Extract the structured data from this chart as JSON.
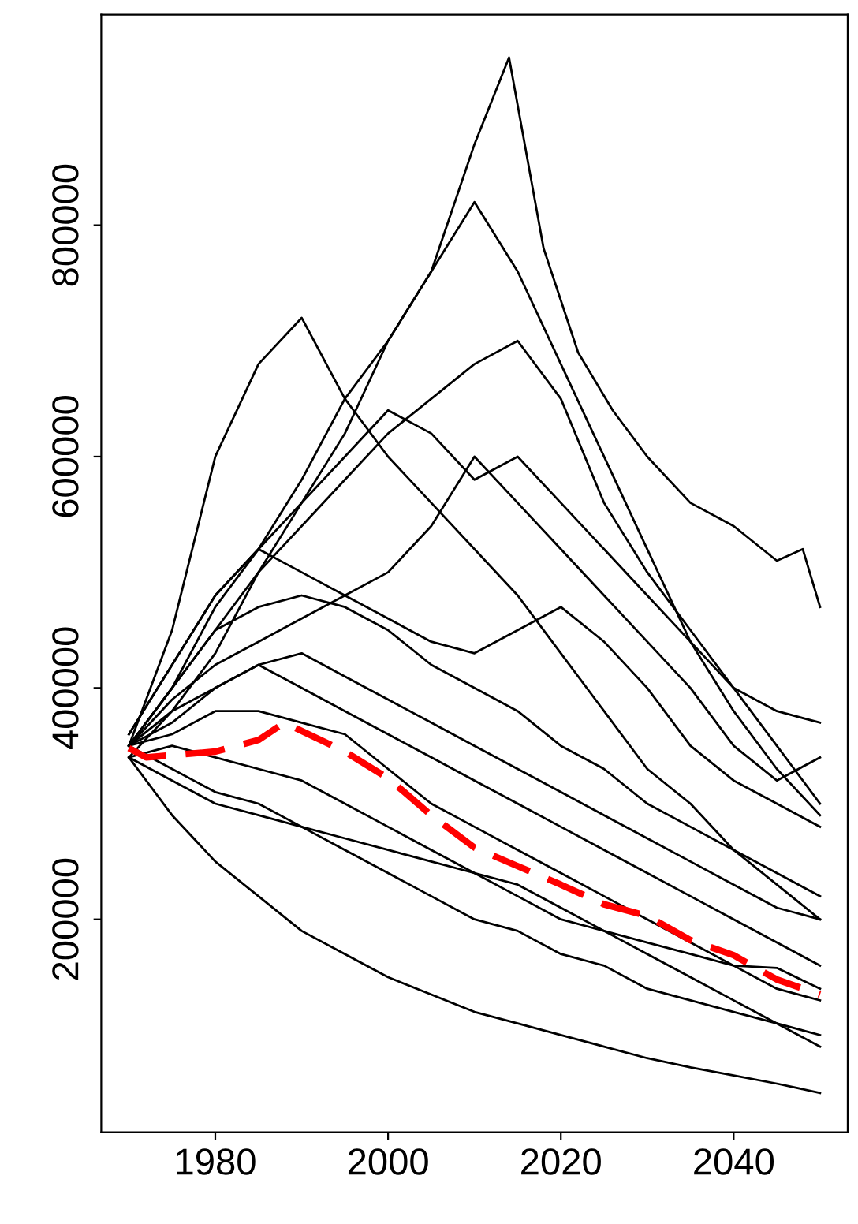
{
  "chart_data": {
    "type": "line",
    "x": [
      1970,
      1975,
      1980,
      1985,
      1990,
      1995,
      2000,
      2005,
      2010,
      2015,
      2020,
      2025,
      2030,
      2035,
      2040,
      2045,
      2050
    ],
    "xlim": [
      1966.8,
      2053.2
    ],
    "xticks": [
      1980,
      2000,
      2020,
      2040
    ],
    "ylim": [
      16000,
      982000
    ],
    "yticks": [
      200000,
      400000,
      600000,
      800000
    ],
    "grid": false,
    "legend": false,
    "marker": "none",
    "series": [
      {
        "color": "#000000",
        "x": [
          1970,
          1975,
          1980,
          1985,
          1990,
          1995,
          2000,
          2005,
          2010,
          2014,
          2018,
          2022,
          2026,
          2030,
          2035,
          2040,
          2045,
          2048,
          2050
        ],
        "values": [
          350000,
          400000,
          470000,
          520000,
          580000,
          650000,
          700000,
          760000,
          870000,
          945000,
          780000,
          690000,
          640000,
          600000,
          560000,
          540000,
          510000,
          520000,
          470000
        ]
      },
      {
        "color": "#000000",
        "values": [
          350000,
          450000,
          600000,
          680000,
          720000,
          650000,
          600000,
          560000,
          520000,
          480000,
          430000,
          380000,
          330000,
          300000,
          260000,
          230000,
          200000
        ]
      },
      {
        "color": "#000000",
        "values": [
          340000,
          380000,
          430000,
          500000,
          560000,
          620000,
          700000,
          760000,
          820000,
          760000,
          680000,
          600000,
          520000,
          440000,
          380000,
          330000,
          290000
        ]
      },
      {
        "color": "#000000",
        "values": [
          360000,
          420000,
          480000,
          520000,
          560000,
          600000,
          640000,
          620000,
          580000,
          600000,
          560000,
          520000,
          480000,
          440000,
          400000,
          380000,
          370000
        ]
      },
      {
        "color": "#000000",
        "values": [
          350000,
          400000,
          450000,
          500000,
          540000,
          580000,
          620000,
          650000,
          680000,
          700000,
          650000,
          560000,
          500000,
          450000,
          400000,
          350000,
          300000
        ]
      },
      {
        "color": "#000000",
        "values": [
          350000,
          380000,
          400000,
          420000,
          400000,
          380000,
          360000,
          340000,
          320000,
          300000,
          280000,
          260000,
          240000,
          220000,
          200000,
          180000,
          160000
        ]
      },
      {
        "color": "#000000",
        "values": [
          350000,
          360000,
          380000,
          380000,
          370000,
          360000,
          330000,
          300000,
          280000,
          260000,
          240000,
          220000,
          200000,
          180000,
          160000,
          140000,
          130000
        ]
      },
      {
        "color": "#000000",
        "values": [
          340000,
          290000,
          250000,
          220000,
          190000,
          170000,
          150000,
          135000,
          120000,
          110000,
          100000,
          90000,
          80000,
          72000,
          65000,
          58000,
          50000
        ]
      },
      {
        "color": "#000000",
        "values": [
          350000,
          330000,
          310000,
          300000,
          280000,
          260000,
          240000,
          220000,
          200000,
          190000,
          170000,
          160000,
          140000,
          130000,
          120000,
          110000,
          100000
        ]
      },
      {
        "color": "#000000",
        "values": [
          350000,
          400000,
          450000,
          470000,
          480000,
          470000,
          450000,
          420000,
          400000,
          380000,
          350000,
          330000,
          300000,
          280000,
          260000,
          240000,
          220000
        ]
      },
      {
        "color": "#000000",
        "values": [
          360000,
          420000,
          480000,
          520000,
          500000,
          480000,
          460000,
          440000,
          430000,
          450000,
          470000,
          440000,
          400000,
          350000,
          320000,
          300000,
          280000
        ]
      },
      {
        "color": "#000000",
        "values": [
          340000,
          320000,
          300000,
          290000,
          280000,
          270000,
          260000,
          250000,
          240000,
          230000,
          210000,
          190000,
          170000,
          150000,
          130000,
          110000,
          90000
        ]
      },
      {
        "color": "#000000",
        "values": [
          350000,
          390000,
          420000,
          440000,
          460000,
          480000,
          500000,
          540000,
          600000,
          560000,
          520000,
          480000,
          440000,
          400000,
          350000,
          320000,
          340000
        ]
      },
      {
        "color": "#000000",
        "values": [
          340000,
          350000,
          340000,
          330000,
          320000,
          300000,
          280000,
          260000,
          240000,
          220000,
          200000,
          190000,
          180000,
          170000,
          160000,
          158000,
          140000
        ]
      },
      {
        "color": "#000000",
        "values": [
          350000,
          370000,
          400000,
          420000,
          430000,
          410000,
          390000,
          370000,
          350000,
          330000,
          310000,
          290000,
          270000,
          250000,
          230000,
          210000,
          200000
        ]
      },
      {
        "color": "#ff0000",
        "line_style": "dashed",
        "x": [
          1970,
          1972,
          1980,
          1985,
          1988,
          1995,
          2000,
          2005,
          2010,
          2015,
          2020,
          2025,
          2030,
          2035,
          2040,
          2045,
          2050
        ],
        "values": [
          348000,
          340000,
          345000,
          355000,
          370000,
          345000,
          322000,
          290000,
          262000,
          246000,
          230000,
          213000,
          203000,
          182000,
          169000,
          148000,
          135000
        ]
      }
    ]
  }
}
